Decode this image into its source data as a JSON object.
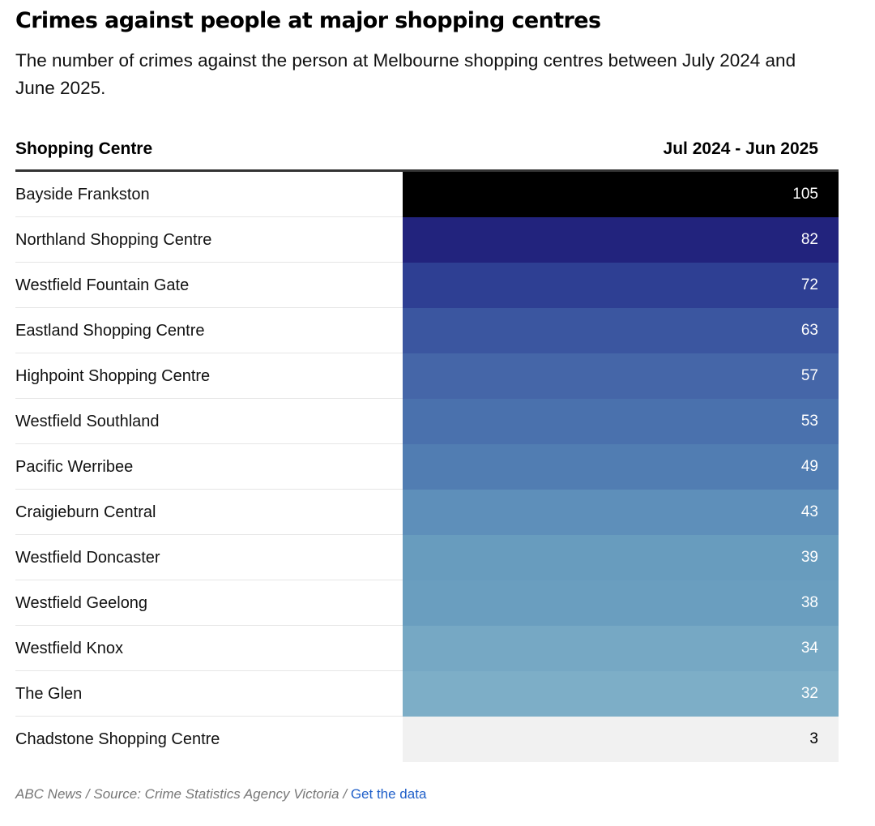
{
  "title": "Crimes against people at major shopping centres",
  "subtitle": "The number of crimes against the person at Melbourne shopping centres between July 2024 and June 2025.",
  "table": {
    "col_name": "Shopping Centre",
    "col_value": "Jul 2024 - Jun 2025"
  },
  "chart_data": {
    "type": "table",
    "columns": [
      "Shopping Centre",
      "Jul 2024 - Jun 2025"
    ],
    "rows": [
      {
        "name": "Bayside Frankston",
        "value": 105,
        "color": "#000000",
        "text_color": "#ffffff"
      },
      {
        "name": "Northland Shopping Centre",
        "value": 82,
        "color": "#22237d",
        "text_color": "#ffffff"
      },
      {
        "name": "Westfield Fountain Gate",
        "value": 72,
        "color": "#2e3f93",
        "text_color": "#ffffff"
      },
      {
        "name": "Eastland Shopping Centre",
        "value": 63,
        "color": "#3b56a0",
        "text_color": "#ffffff"
      },
      {
        "name": "Highpoint Shopping Centre",
        "value": 57,
        "color": "#4566a8",
        "text_color": "#ffffff"
      },
      {
        "name": "Westfield Southland",
        "value": 53,
        "color": "#4a71ad",
        "text_color": "#ffffff"
      },
      {
        "name": "Pacific Werribee",
        "value": 49,
        "color": "#517db2",
        "text_color": "#ffffff"
      },
      {
        "name": "Craigieburn Central",
        "value": 43,
        "color": "#5e8fba",
        "text_color": "#ffffff"
      },
      {
        "name": "Westfield Doncaster",
        "value": 39,
        "color": "#689cbe",
        "text_color": "#ffffff"
      },
      {
        "name": "Westfield Geelong",
        "value": 38,
        "color": "#6a9ebf",
        "text_color": "#ffffff"
      },
      {
        "name": "Westfield Knox",
        "value": 34,
        "color": "#76a8c4",
        "text_color": "#ffffff"
      },
      {
        "name": "The Glen",
        "value": 32,
        "color": "#7daec7",
        "text_color": "#ffffff"
      },
      {
        "name": "Chadstone Shopping Centre",
        "value": 3,
        "color": "#f1f1f1",
        "text_color": "#000000"
      }
    ]
  },
  "footer": {
    "source": "ABC News / Source: Crime Statistics Agency Victoria /",
    "link": "Get the data",
    "link_color": "#1f5fc9"
  }
}
